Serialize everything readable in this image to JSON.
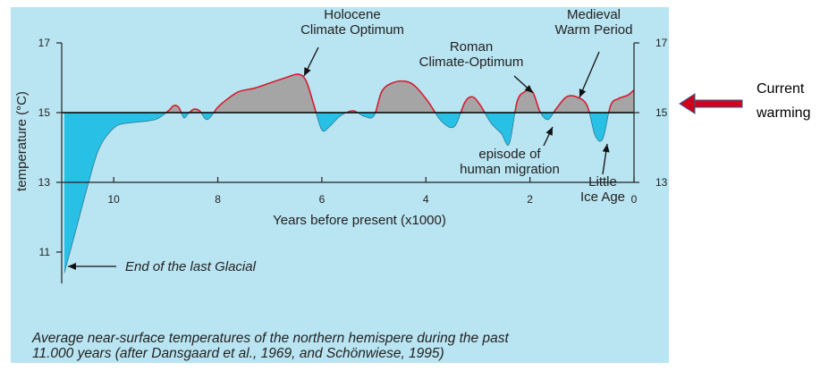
{
  "chart_data": {
    "type": "area",
    "title": "",
    "xlabel": "Years before present (x1000)",
    "ylabel": "temperature (°C)",
    "xlim": [
      11.0,
      0.0
    ],
    "ylim": [
      10,
      17
    ],
    "baseline": 15,
    "x_ticks": [
      10,
      8,
      6,
      4,
      2,
      0
    ],
    "y_ticks": [
      11,
      13,
      15,
      17
    ],
    "colors": {
      "above": "#a5a5a5",
      "below": "#29c0e6",
      "outline": "#d81c2e",
      "baseline": "#000000"
    },
    "series": [
      {
        "name": "temperature",
        "x": [
          10.95,
          10.75,
          10.5,
          10.3,
          10.1,
          9.9,
          9.6,
          9.2,
          8.95,
          8.85,
          8.75,
          8.65,
          8.55,
          8.45,
          8.35,
          8.2,
          8.0,
          7.85,
          7.6,
          7.3,
          7.0,
          6.7,
          6.45,
          6.3,
          6.15,
          6.0,
          5.85,
          5.65,
          5.4,
          5.2,
          5.0,
          4.85,
          4.65,
          4.4,
          4.2,
          3.95,
          3.7,
          3.45,
          3.25,
          3.1,
          2.95,
          2.75,
          2.55,
          2.4,
          2.25,
          2.1,
          1.95,
          1.8,
          1.65,
          1.5,
          1.3,
          1.1,
          0.9,
          0.75,
          0.6,
          0.45,
          0.3,
          0.12,
          0.0
        ],
        "y": [
          10.4,
          11.5,
          12.9,
          13.9,
          14.4,
          14.65,
          14.72,
          14.8,
          15.05,
          15.2,
          15.15,
          14.85,
          15.0,
          15.1,
          15.05,
          14.8,
          15.15,
          15.35,
          15.6,
          15.7,
          15.85,
          16.0,
          16.1,
          15.9,
          15.2,
          14.5,
          14.6,
          14.9,
          15.05,
          14.9,
          14.9,
          15.6,
          15.85,
          15.9,
          15.75,
          15.3,
          14.75,
          14.6,
          15.3,
          15.45,
          15.2,
          14.7,
          14.4,
          14.1,
          15.3,
          15.6,
          15.6,
          15.0,
          14.8,
          15.1,
          15.45,
          15.45,
          15.2,
          14.35,
          14.25,
          15.2,
          15.4,
          15.5,
          15.65
        ]
      }
    ],
    "annotations": [
      {
        "label": [
          "Holocene",
          "Climate Optimum"
        ],
        "x": 6.4
      },
      {
        "label": [
          "Roman",
          "Climate-Optimum"
        ],
        "x": 1.95
      },
      {
        "label": [
          "Medieval",
          "Warm Period"
        ],
        "x": 1.1
      },
      {
        "label": [
          "episode of",
          "human migration"
        ],
        "x": 1.6
      },
      {
        "label": [
          "Little",
          "Ice Age"
        ],
        "x": 0.55
      },
      {
        "label": [
          "End of the last Glacial"
        ],
        "x": 10.9
      }
    ]
  },
  "caption": {
    "line1": "Average near-surface temperatures of the northern hemispere during the past",
    "line2": "11.000 years (after Dansgaard et al., 1969, and Schönwiese, 1995)"
  },
  "side_note": {
    "line1": "Current",
    "line2": "warming",
    "arrow_color": "#d0021b"
  }
}
